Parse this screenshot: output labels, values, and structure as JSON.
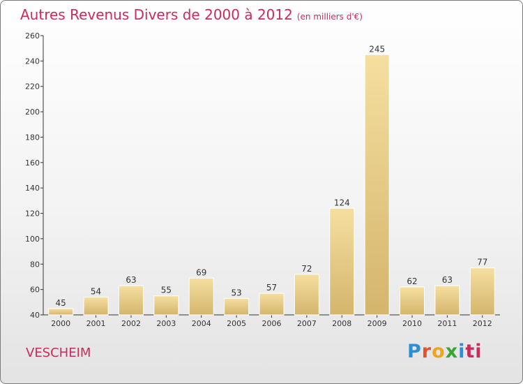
{
  "header": {
    "title": "Autres Revenus Divers de 2000 à 2012",
    "subtitle": "(en milliers d'€)"
  },
  "footer": {
    "place": "VESCHEIM",
    "logo_letters": [
      "P",
      "r",
      "o",
      "x",
      "i",
      "ti"
    ]
  },
  "colors": {
    "title": "#cc2a5c",
    "bar_light": "#f5dfa0",
    "bar_dark": "#d4b56c",
    "axis": "#333333"
  },
  "chart_data": {
    "type": "bar",
    "title": "Autres Revenus Divers de 2000 à 2012",
    "subtitle": "(en milliers d'€)",
    "categories": [
      "2000",
      "2001",
      "2002",
      "2003",
      "2004",
      "2005",
      "2006",
      "2007",
      "2008",
      "2009",
      "2010",
      "2011",
      "2012"
    ],
    "values": [
      45,
      54,
      63,
      55,
      69,
      53,
      57,
      72,
      124,
      245,
      62,
      63,
      77
    ],
    "ylim": [
      40,
      260
    ],
    "yticks": [
      40,
      60,
      80,
      100,
      120,
      140,
      160,
      180,
      200,
      220,
      240,
      260
    ],
    "data_labels": true,
    "grid": false,
    "legend": "none"
  }
}
